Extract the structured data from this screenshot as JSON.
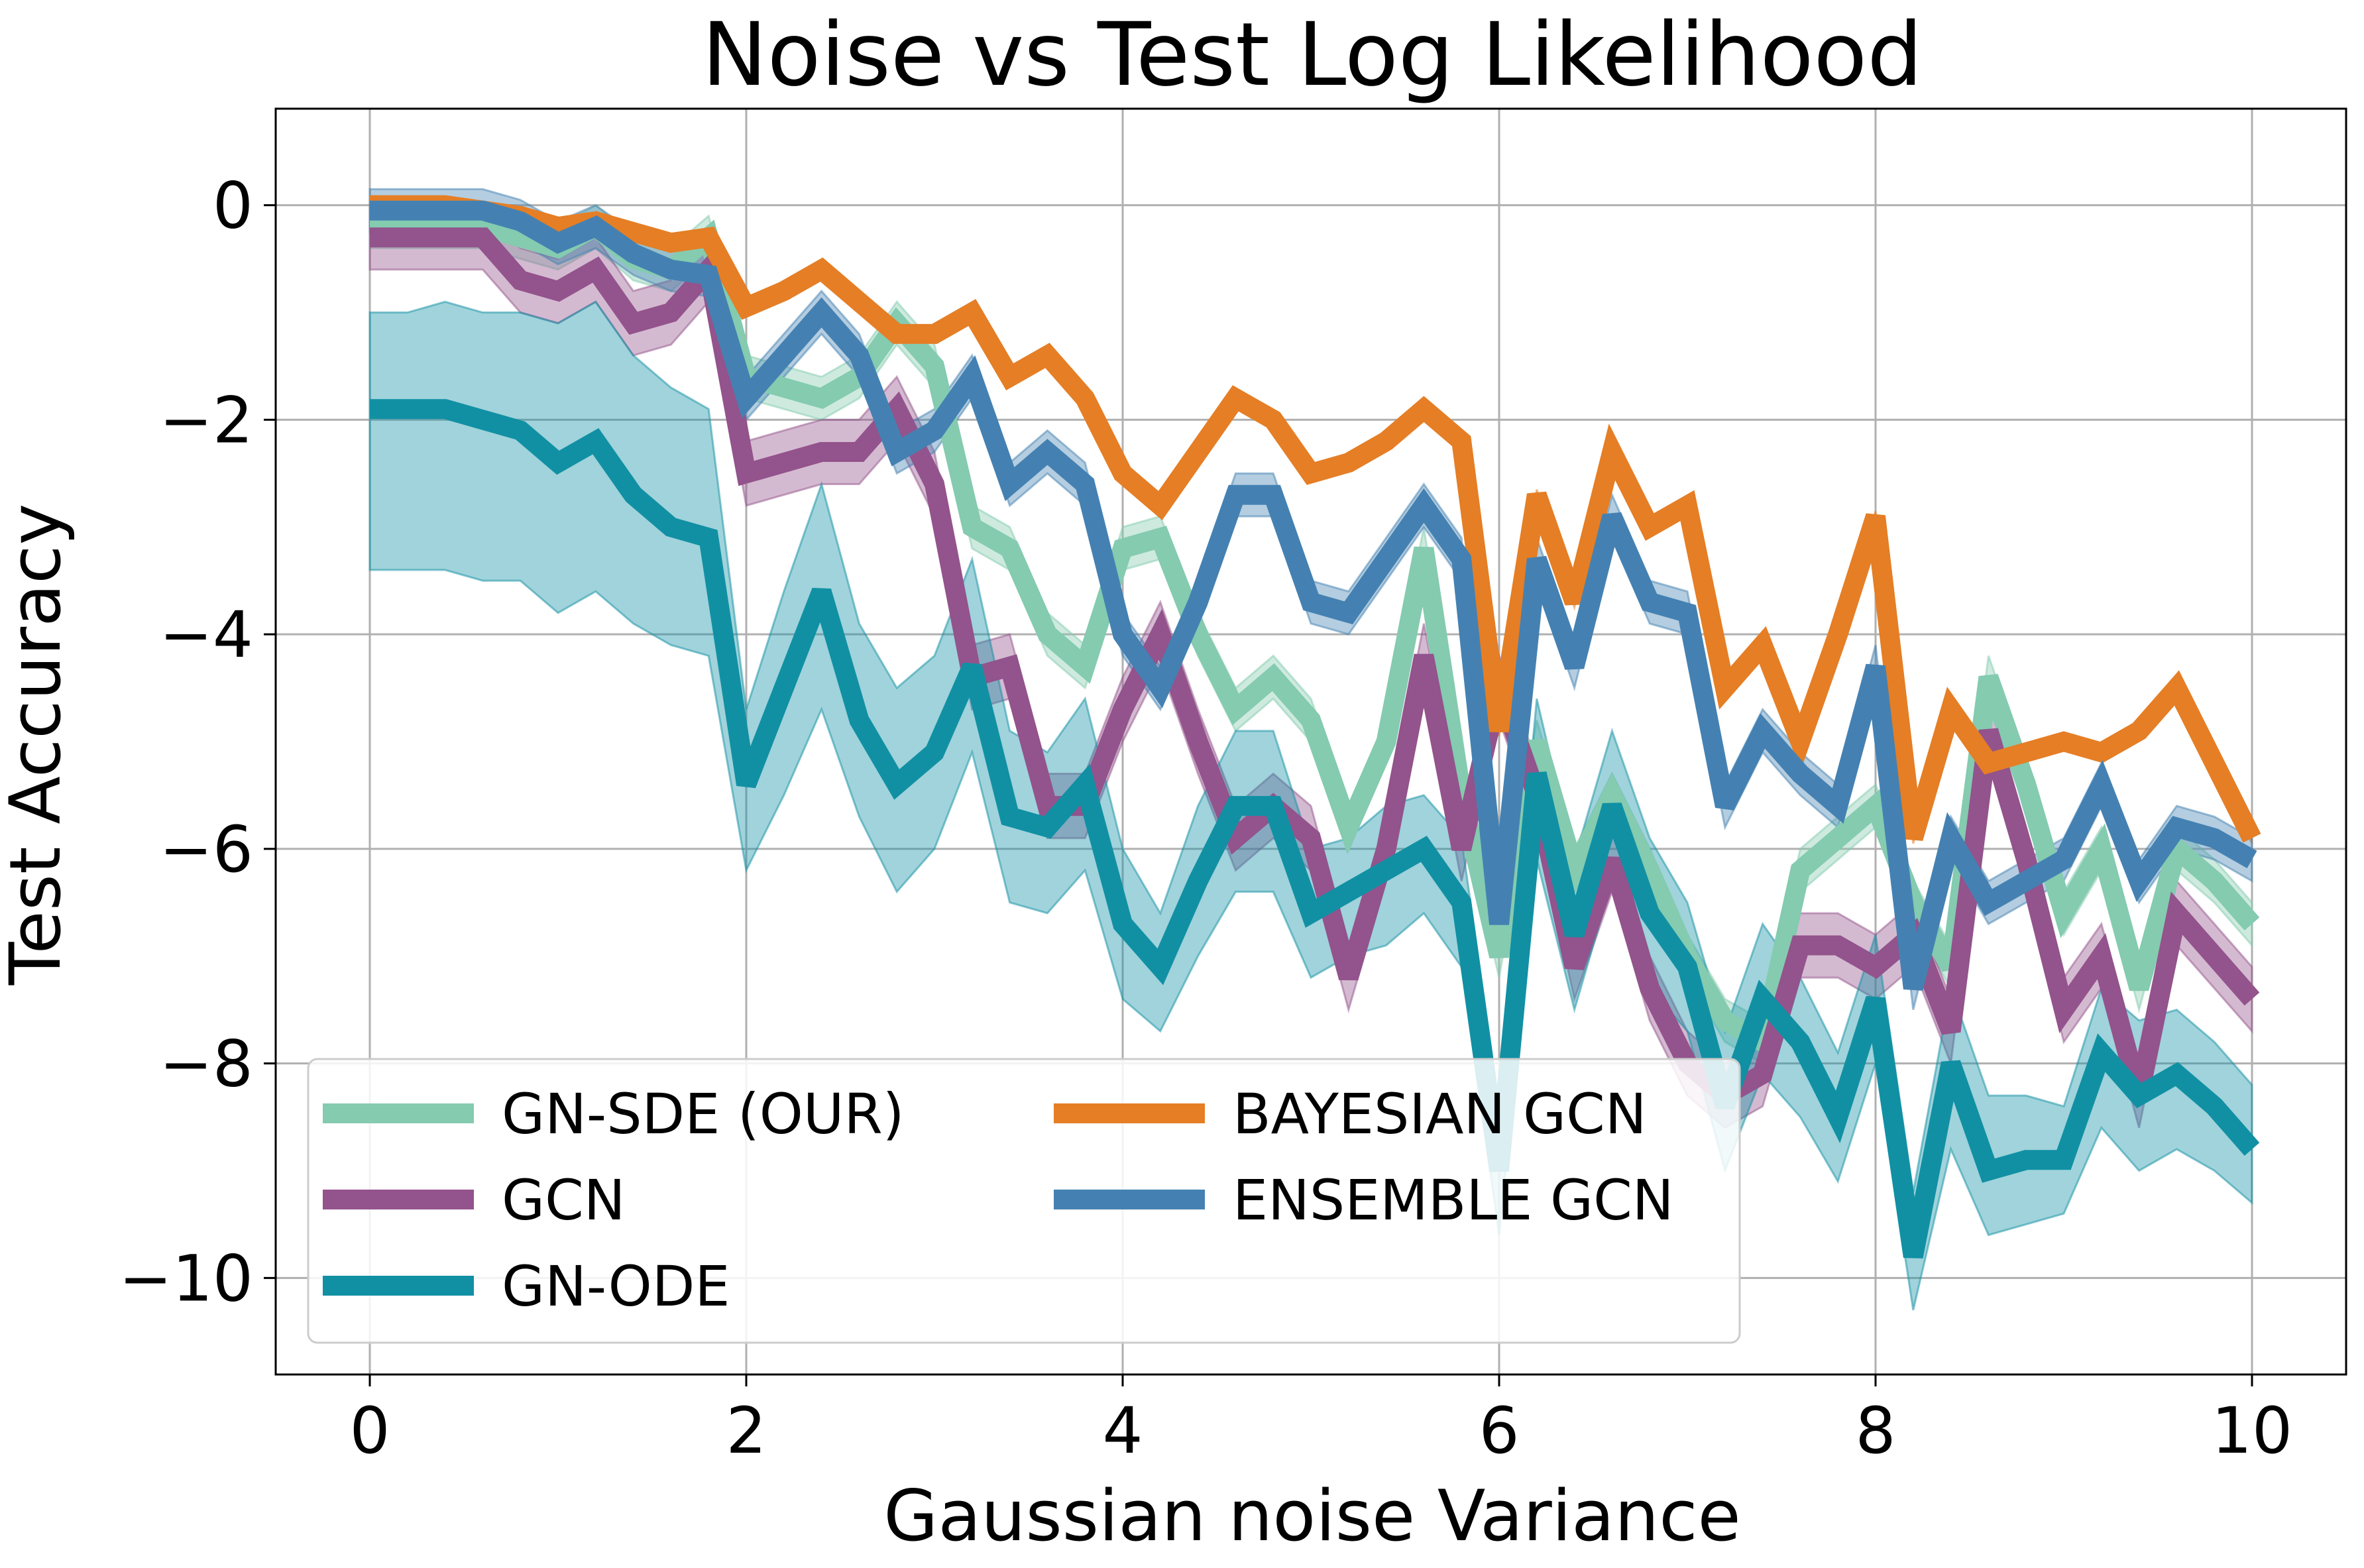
{
  "chart_data": {
    "type": "line",
    "title": "Noise vs Test Log Likelihood",
    "xlabel": "Gaussian noise Variance",
    "ylabel": "Test Accuracy",
    "xlim": [
      -0.5,
      10.5
    ],
    "ylim": [
      -10.9,
      0.9
    ],
    "xticks": [
      0,
      2,
      4,
      6,
      8,
      10
    ],
    "xtick_labels": [
      "0",
      "2",
      "4",
      "6",
      "8",
      "10"
    ],
    "yticks": [
      0,
      -2,
      -4,
      -6,
      -8,
      -10
    ],
    "ytick_labels": [
      "0",
      "−2",
      "−4",
      "−6",
      "−8",
      "−10"
    ],
    "grid": true,
    "legend": {
      "position": "lower-left",
      "columns": 2
    },
    "x": [
      0,
      0.2,
      0.4,
      0.6,
      0.8,
      1.0,
      1.2,
      1.4,
      1.6,
      1.8,
      2.0,
      2.2,
      2.4,
      2.6,
      2.8,
      3.0,
      3.2,
      3.4,
      3.6,
      3.8,
      4.0,
      4.2,
      4.4,
      4.6,
      4.8,
      5.0,
      5.2,
      5.4,
      5.6,
      5.8,
      6.0,
      6.2,
      6.4,
      6.6,
      6.8,
      7.0,
      7.2,
      7.4,
      7.6,
      7.8,
      8.0,
      8.2,
      8.4,
      8.6,
      8.8,
      9.0,
      9.2,
      9.4,
      9.6,
      9.8,
      10.0
    ],
    "series": [
      {
        "name": "GN-SDE (OUR)",
        "color": "#84cbb0",
        "values": [
          -0.2,
          -0.2,
          -0.2,
          -0.2,
          -0.3,
          -0.4,
          -0.2,
          -0.5,
          -0.6,
          -0.3,
          -1.6,
          -1.7,
          -1.8,
          -1.6,
          -1.1,
          -1.5,
          -3.0,
          -3.2,
          -4.0,
          -4.3,
          -3.2,
          -3.1,
          -4.0,
          -4.7,
          -4.4,
          -4.8,
          -5.8,
          -5.0,
          -3.2,
          -5.5,
          -7.0,
          -5.0,
          -6.2,
          -5.5,
          -6.2,
          -7.0,
          -7.6,
          -7.8,
          -6.2,
          -5.9,
          -5.6,
          -6.5,
          -7.1,
          -4.4,
          -5.4,
          -6.6,
          -6.0,
          -7.3,
          -6.0,
          -6.3,
          -6.7
        ],
        "band": 0.2
      },
      {
        "name": "GCN",
        "color": "#93538c",
        "values": [
          -0.3,
          -0.3,
          -0.3,
          -0.3,
          -0.7,
          -0.8,
          -0.6,
          -1.1,
          -1.0,
          -0.6,
          -2.5,
          -2.4,
          -2.3,
          -2.3,
          -1.9,
          -2.6,
          -4.4,
          -4.3,
          -5.6,
          -5.6,
          -4.7,
          -4.0,
          -5.0,
          -5.9,
          -5.6,
          -5.9,
          -7.2,
          -6.0,
          -4.2,
          -6.0,
          -4.5,
          -5.5,
          -7.1,
          -6.1,
          -7.3,
          -8.0,
          -8.3,
          -8.1,
          -6.9,
          -6.9,
          -7.1,
          -6.8,
          -7.7,
          -4.9,
          -6.1,
          -7.5,
          -7.0,
          -8.3,
          -6.6,
          -7.0,
          -7.4
        ],
        "band": 0.3
      },
      {
        "name": "GN-ODE",
        "color": "#1190a4",
        "values": [
          -1.9,
          -1.9,
          -1.9,
          -2.0,
          -2.1,
          -2.4,
          -2.2,
          -2.7,
          -3.0,
          -3.1,
          -5.4,
          -4.5,
          -3.6,
          -4.8,
          -5.4,
          -5.1,
          -4.3,
          -5.7,
          -5.8,
          -5.4,
          -6.7,
          -7.1,
          -6.3,
          -5.6,
          -5.6,
          -6.6,
          -6.4,
          -6.2,
          -6.0,
          -6.5,
          -9.0,
          -5.3,
          -6.8,
          -5.6,
          -6.6,
          -7.1,
          -8.4,
          -7.4,
          -7.8,
          -8.5,
          -7.4,
          -9.8,
          -8.0,
          -9.0,
          -8.9,
          -8.9,
          -7.9,
          -8.3,
          -8.1,
          -8.4,
          -8.8
        ],
        "band_lower": [
          -3.4,
          -3.4,
          -3.4,
          -3.5,
          -3.5,
          -3.8,
          -3.6,
          -3.9,
          -4.1,
          -4.2,
          -6.2,
          -5.5,
          -4.7,
          -5.7,
          -6.4,
          -6.0,
          -5.1,
          -6.5,
          -6.6,
          -6.2,
          -7.4,
          -7.7,
          -7.0,
          -6.4,
          -6.4,
          -7.2,
          -7.0,
          -6.9,
          -6.6,
          -7.1,
          -9.6,
          -6.1,
          -7.5,
          -6.3,
          -7.3,
          -7.7,
          -9.0,
          -8.1,
          -8.5,
          -9.1,
          -8.0,
          -10.3,
          -8.8,
          -9.6,
          -9.5,
          -9.4,
          -8.6,
          -9.0,
          -8.8,
          -9.0,
          -9.3
        ],
        "band_upper": [
          -1.0,
          -1.0,
          -0.9,
          -1.0,
          -1.0,
          -1.1,
          -0.9,
          -1.4,
          -1.7,
          -1.9,
          -4.7,
          -3.6,
          -2.6,
          -3.9,
          -4.5,
          -4.2,
          -3.3,
          -4.9,
          -5.1,
          -4.6,
          -6.0,
          -6.6,
          -5.6,
          -4.9,
          -4.9,
          -6.0,
          -5.9,
          -5.6,
          -5.5,
          -5.9,
          -8.4,
          -4.6,
          -6.1,
          -4.9,
          -5.9,
          -6.5,
          -7.7,
          -6.7,
          -7.2,
          -7.9,
          -6.8,
          -9.2,
          -7.3,
          -8.3,
          -8.3,
          -8.4,
          -7.3,
          -7.6,
          -7.5,
          -7.8,
          -8.2
        ]
      },
      {
        "name": "BAYESIAN GCN",
        "color": "#e57e25",
        "values": [
          0.0,
          0.0,
          0.0,
          -0.05,
          -0.1,
          -0.2,
          -0.15,
          -0.25,
          -0.35,
          -0.3,
          -0.95,
          -0.8,
          -0.6,
          -0.9,
          -1.2,
          -1.2,
          -1.0,
          -1.6,
          -1.4,
          -1.8,
          -2.5,
          -2.8,
          -2.3,
          -1.8,
          -2.0,
          -2.5,
          -2.4,
          -2.2,
          -1.9,
          -2.2,
          -4.9,
          -2.7,
          -3.7,
          -2.3,
          -3.0,
          -2.8,
          -4.5,
          -4.1,
          -5.0,
          -4.0,
          -2.9,
          -5.9,
          -4.7,
          -5.2,
          -5.1,
          -5.0,
          -5.1,
          -4.9,
          -4.5,
          -5.2,
          -5.9
        ],
        "band": 0.05
      },
      {
        "name": "ENSEMBLE GCN",
        "color": "#4481b2",
        "values": [
          -0.05,
          -0.05,
          -0.05,
          -0.05,
          -0.15,
          -0.35,
          -0.2,
          -0.45,
          -0.6,
          -0.65,
          -1.8,
          -1.4,
          -1.0,
          -1.4,
          -2.3,
          -2.1,
          -1.6,
          -2.6,
          -2.3,
          -2.6,
          -4.0,
          -4.5,
          -3.7,
          -2.7,
          -2.7,
          -3.7,
          -3.8,
          -3.3,
          -2.8,
          -3.3,
          -6.7,
          -3.3,
          -4.3,
          -2.9,
          -3.7,
          -3.8,
          -5.6,
          -4.9,
          -5.3,
          -5.6,
          -4.3,
          -7.3,
          -5.9,
          -6.5,
          -6.3,
          -6.1,
          -5.4,
          -6.3,
          -5.8,
          -5.9,
          -6.1
        ],
        "band": 0.2
      }
    ]
  }
}
